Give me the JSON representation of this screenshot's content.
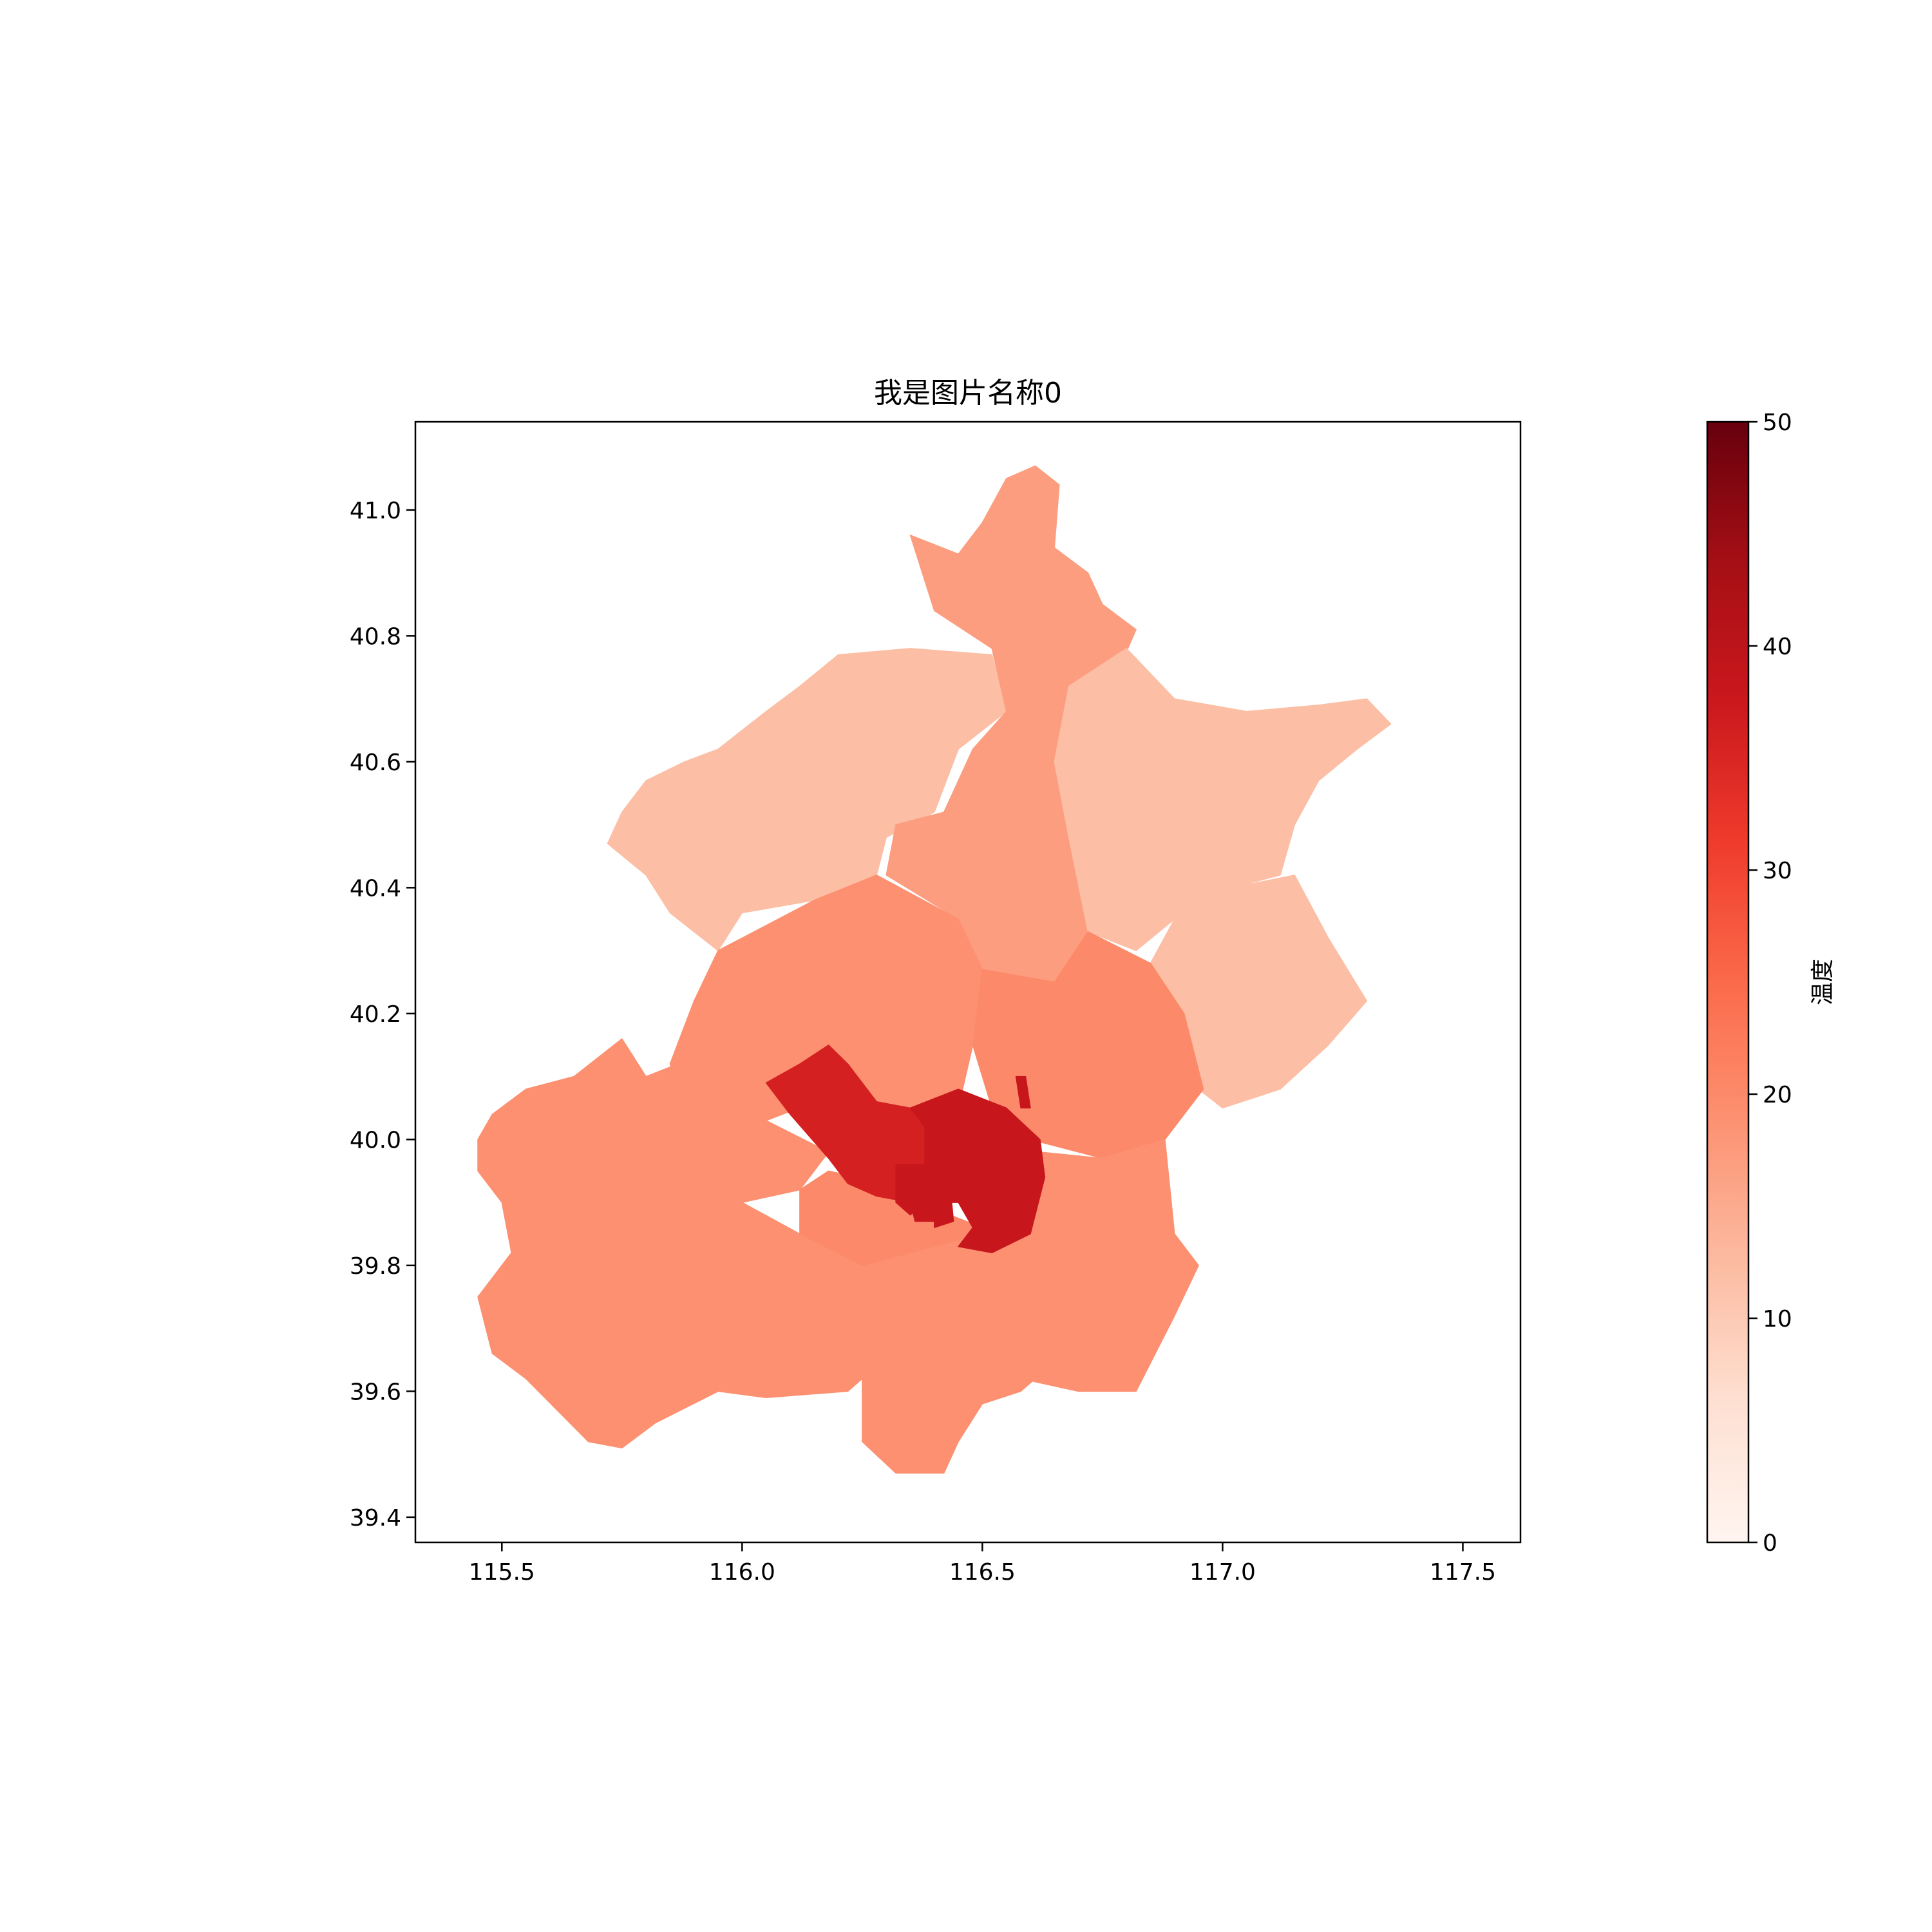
{
  "chart_data": {
    "type": "choropleth",
    "title": "我是图片名称0",
    "xlabel": "",
    "ylabel": "",
    "xlim": [
      115.32,
      117.62
    ],
    "ylim": [
      39.36,
      41.14
    ],
    "xticks": [
      115.5,
      116.0,
      116.5,
      117.0,
      117.5
    ],
    "xtick_labels": [
      "115.5",
      "116.0",
      "116.5",
      "117.0",
      "117.5"
    ],
    "yticks": [
      39.4,
      39.6,
      39.8,
      40.0,
      40.2,
      40.4,
      40.6,
      40.8,
      41.0
    ],
    "ytick_labels": [
      "39.4",
      "39.6",
      "39.8",
      "40.0",
      "40.2",
      "40.4",
      "40.6",
      "40.8",
      "41.0"
    ],
    "grid": false,
    "colormap": "Reds",
    "colorbar": {
      "label": "温度",
      "range": [
        0,
        50
      ],
      "ticks": [
        0,
        10,
        20,
        30,
        40,
        50
      ],
      "tick_labels": [
        "0",
        "10",
        "20",
        "30",
        "40",
        "50"
      ],
      "stops": [
        "#fff5f0",
        "#fee0d2",
        "#fcbba1",
        "#fc9272",
        "#fb6a4a",
        "#ef3b2c",
        "#cb181d",
        "#a50f15",
        "#67000d"
      ]
    },
    "regions": [
      {
        "id": "yanqing",
        "value": 12,
        "ring": [
          [
            115.75,
            40.52
          ],
          [
            115.8,
            40.57
          ],
          [
            115.88,
            40.6
          ],
          [
            115.95,
            40.62
          ],
          [
            116.05,
            40.68
          ],
          [
            116.12,
            40.72
          ],
          [
            116.2,
            40.77
          ],
          [
            116.35,
            40.78
          ],
          [
            116.52,
            40.77
          ],
          [
            116.55,
            40.68
          ],
          [
            116.45,
            40.62
          ],
          [
            116.4,
            40.52
          ],
          [
            116.3,
            40.48
          ],
          [
            116.28,
            40.42
          ],
          [
            116.15,
            40.38
          ],
          [
            116.0,
            40.36
          ],
          [
            115.95,
            40.3
          ],
          [
            115.85,
            40.36
          ],
          [
            115.8,
            40.42
          ],
          [
            115.72,
            40.47
          ]
        ]
      },
      {
        "id": "huairou",
        "value": 17,
        "ring": [
          [
            116.35,
            40.96
          ],
          [
            116.45,
            40.93
          ],
          [
            116.5,
            40.98
          ],
          [
            116.55,
            41.05
          ],
          [
            116.61,
            41.07
          ],
          [
            116.66,
            41.04
          ],
          [
            116.65,
            40.94
          ],
          [
            116.72,
            40.9
          ],
          [
            116.75,
            40.85
          ],
          [
            116.82,
            40.81
          ],
          [
            116.78,
            40.74
          ],
          [
            116.68,
            40.72
          ],
          [
            116.65,
            40.6
          ],
          [
            116.68,
            40.48
          ],
          [
            116.72,
            40.33
          ],
          [
            116.65,
            40.25
          ],
          [
            116.5,
            40.27
          ],
          [
            116.45,
            40.35
          ],
          [
            116.3,
            40.42
          ],
          [
            116.32,
            40.5
          ],
          [
            116.42,
            40.52
          ],
          [
            116.48,
            40.62
          ],
          [
            116.55,
            40.68
          ],
          [
            116.52,
            40.78
          ],
          [
            116.4,
            40.84
          ]
        ]
      },
      {
        "id": "miyun",
        "value": 12,
        "ring": [
          [
            116.68,
            40.72
          ],
          [
            116.8,
            40.78
          ],
          [
            116.9,
            40.7
          ],
          [
            117.05,
            40.68
          ],
          [
            117.2,
            40.69
          ],
          [
            117.3,
            40.7
          ],
          [
            117.35,
            40.66
          ],
          [
            117.28,
            40.62
          ],
          [
            117.2,
            40.57
          ],
          [
            117.15,
            40.5
          ],
          [
            117.12,
            40.42
          ],
          [
            117.02,
            40.4
          ],
          [
            116.9,
            40.35
          ],
          [
            116.82,
            40.3
          ],
          [
            116.72,
            40.33
          ],
          [
            116.68,
            40.48
          ],
          [
            116.65,
            40.6
          ]
        ]
      },
      {
        "id": "pinggu",
        "value": 12,
        "ring": [
          [
            116.9,
            40.35
          ],
          [
            117.02,
            40.4
          ],
          [
            117.15,
            40.42
          ],
          [
            117.22,
            40.32
          ],
          [
            117.3,
            40.22
          ],
          [
            117.22,
            40.15
          ],
          [
            117.12,
            40.08
          ],
          [
            117.0,
            40.05
          ],
          [
            116.95,
            40.08
          ],
          [
            116.92,
            40.2
          ],
          [
            116.85,
            40.28
          ]
        ]
      },
      {
        "id": "changping",
        "value": 19,
        "ring": [
          [
            115.95,
            40.3
          ],
          [
            116.05,
            40.34
          ],
          [
            116.15,
            40.38
          ],
          [
            116.28,
            40.42
          ],
          [
            116.45,
            40.35
          ],
          [
            116.5,
            40.27
          ],
          [
            116.48,
            40.15
          ],
          [
            116.45,
            40.05
          ],
          [
            116.35,
            40.02
          ],
          [
            116.22,
            40.08
          ],
          [
            116.05,
            40.03
          ],
          [
            115.9,
            40.02
          ],
          [
            115.85,
            40.12
          ],
          [
            115.9,
            40.22
          ]
        ]
      },
      {
        "id": "shunyi",
        "value": 20,
        "ring": [
          [
            116.5,
            40.27
          ],
          [
            116.65,
            40.25
          ],
          [
            116.72,
            40.33
          ],
          [
            116.85,
            40.28
          ],
          [
            116.92,
            40.2
          ],
          [
            116.96,
            40.08
          ],
          [
            116.88,
            40.0
          ],
          [
            116.75,
            39.97
          ],
          [
            116.6,
            40.0
          ],
          [
            116.52,
            40.05
          ],
          [
            116.48,
            40.15
          ]
        ]
      },
      {
        "id": "mentougou",
        "value": 19,
        "ring": [
          [
            115.45,
            40.0
          ],
          [
            115.48,
            40.04
          ],
          [
            115.55,
            40.08
          ],
          [
            115.65,
            40.1
          ],
          [
            115.75,
            40.16
          ],
          [
            115.8,
            40.1
          ],
          [
            115.9,
            40.13
          ],
          [
            116.05,
            40.03
          ],
          [
            116.18,
            39.98
          ],
          [
            116.12,
            39.92
          ],
          [
            116.0,
            39.9
          ],
          [
            115.8,
            39.88
          ],
          [
            115.7,
            39.85
          ],
          [
            115.52,
            39.82
          ],
          [
            115.5,
            39.9
          ],
          [
            115.45,
            39.95
          ]
        ]
      },
      {
        "id": "fangshan",
        "value": 19,
        "ring": [
          [
            115.45,
            39.75
          ],
          [
            115.52,
            39.82
          ],
          [
            115.7,
            39.85
          ],
          [
            115.8,
            39.88
          ],
          [
            116.0,
            39.9
          ],
          [
            116.12,
            39.85
          ],
          [
            116.25,
            39.8
          ],
          [
            116.25,
            39.62
          ],
          [
            116.22,
            39.6
          ],
          [
            116.05,
            39.59
          ],
          [
            115.95,
            39.6
          ],
          [
            115.82,
            39.55
          ],
          [
            115.75,
            39.51
          ],
          [
            115.68,
            39.52
          ],
          [
            115.55,
            39.62
          ],
          [
            115.48,
            39.66
          ]
        ]
      },
      {
        "id": "daxing",
        "value": 19,
        "ring": [
          [
            116.25,
            39.8
          ],
          [
            116.35,
            39.82
          ],
          [
            116.45,
            39.84
          ],
          [
            116.55,
            39.88
          ],
          [
            116.62,
            39.8
          ],
          [
            116.7,
            39.68
          ],
          [
            116.58,
            39.6
          ],
          [
            116.5,
            39.58
          ],
          [
            116.45,
            39.52
          ],
          [
            116.42,
            39.47
          ],
          [
            116.32,
            39.47
          ],
          [
            116.25,
            39.52
          ],
          [
            116.25,
            39.62
          ]
        ]
      },
      {
        "id": "tongzhou",
        "value": 19,
        "ring": [
          [
            116.55,
            39.88
          ],
          [
            116.62,
            39.98
          ],
          [
            116.75,
            39.97
          ],
          [
            116.88,
            40.0
          ],
          [
            116.9,
            39.85
          ],
          [
            116.95,
            39.8
          ],
          [
            116.9,
            39.72
          ],
          [
            116.82,
            39.6
          ],
          [
            116.7,
            39.6
          ],
          [
            116.58,
            39.62
          ],
          [
            116.65,
            39.7
          ],
          [
            116.62,
            39.8
          ]
        ]
      },
      {
        "id": "fengtai",
        "value": 20,
        "ring": [
          [
            116.12,
            39.92
          ],
          [
            116.18,
            39.95
          ],
          [
            116.3,
            39.93
          ],
          [
            116.4,
            39.89
          ],
          [
            116.5,
            39.86
          ],
          [
            116.45,
            39.84
          ],
          [
            116.35,
            39.82
          ],
          [
            116.25,
            39.8
          ],
          [
            116.12,
            39.85
          ]
        ]
      },
      {
        "id": "haidian",
        "value": 36,
        "ring": [
          [
            116.05,
            40.09
          ],
          [
            116.12,
            40.12
          ],
          [
            116.18,
            40.15
          ],
          [
            116.22,
            40.12
          ],
          [
            116.28,
            40.06
          ],
          [
            116.35,
            40.05
          ],
          [
            116.38,
            40.02
          ],
          [
            116.38,
            39.95
          ],
          [
            116.35,
            39.9
          ],
          [
            116.28,
            39.91
          ],
          [
            116.22,
            39.93
          ],
          [
            116.18,
            39.97
          ],
          [
            116.1,
            40.04
          ]
        ]
      },
      {
        "id": "chaoyang",
        "value": 38,
        "ring": [
          [
            116.35,
            40.05
          ],
          [
            116.45,
            40.08
          ],
          [
            116.55,
            40.05
          ],
          [
            116.62,
            40.0
          ],
          [
            116.63,
            39.94
          ],
          [
            116.6,
            39.85
          ],
          [
            116.52,
            39.82
          ],
          [
            116.45,
            39.83
          ],
          [
            116.48,
            39.86
          ],
          [
            116.45,
            39.9
          ],
          [
            116.4,
            39.9
          ],
          [
            116.38,
            39.95
          ],
          [
            116.38,
            40.02
          ]
        ]
      },
      {
        "id": "shijingshan",
        "value": 38,
        "ring": [
          [
            116.32,
            39.96
          ],
          [
            116.37,
            39.96
          ],
          [
            116.38,
            39.9
          ],
          [
            116.35,
            39.88
          ],
          [
            116.32,
            39.9
          ]
        ]
      },
      {
        "id": "xicheng",
        "value": 38,
        "ring": [
          [
            116.37,
            39.96
          ],
          [
            116.4,
            39.96
          ],
          [
            116.4,
            39.87
          ],
          [
            116.36,
            39.87
          ],
          [
            116.35,
            39.9
          ]
        ]
      },
      {
        "id": "dongcheng",
        "value": 38,
        "ring": [
          [
            116.4,
            39.96
          ],
          [
            116.43,
            39.95
          ],
          [
            116.44,
            39.87
          ],
          [
            116.4,
            39.86
          ]
        ]
      },
      {
        "id": "chaoyang-exclave",
        "value": 38,
        "ring": [
          [
            116.57,
            40.1
          ],
          [
            116.59,
            40.1
          ],
          [
            116.6,
            40.05
          ],
          [
            116.58,
            40.05
          ]
        ]
      }
    ]
  }
}
